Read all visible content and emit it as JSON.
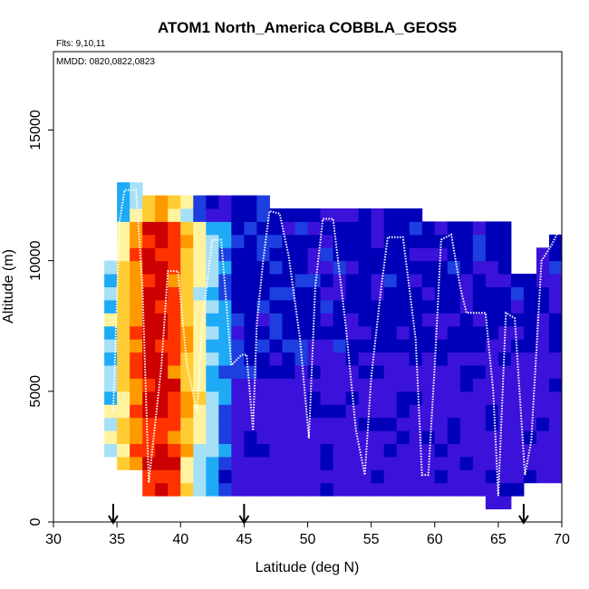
{
  "chart_data": {
    "type": "heatmap",
    "title": "ATOM1 North_America COBBLA_GEOS5",
    "annotations": {
      "flights": "Flts: 9,10,11",
      "dates": "MMDD: 0820,0822,0823"
    },
    "xlabel": "Latitude (deg N)",
    "ylabel": "Altitude (m)",
    "xlim": [
      30,
      70
    ],
    "ylim": [
      0,
      18000
    ],
    "x_ticks": [
      30,
      35,
      40,
      45,
      50,
      55,
      60,
      65,
      70
    ],
    "y_ticks": [
      0,
      5000,
      10000,
      15000
    ],
    "grid": false,
    "legend": "none",
    "arrow_markers_lat": [
      34.7,
      45.0,
      67.0
    ],
    "flight_track": {
      "color": "#ffffff",
      "points": [
        [
          34.7,
          4200
        ],
        [
          35.2,
          11500
        ],
        [
          35.6,
          12700
        ],
        [
          36.5,
          12700
        ],
        [
          37.0,
          9000
        ],
        [
          37.5,
          1500
        ],
        [
          38.5,
          6000
        ],
        [
          39.0,
          9600
        ],
        [
          39.8,
          9600
        ],
        [
          40.5,
          6000
        ],
        [
          41.3,
          4200
        ],
        [
          41.7,
          7500
        ],
        [
          42.5,
          10800
        ],
        [
          43.2,
          10800
        ],
        [
          44.0,
          6000
        ],
        [
          44.8,
          6400
        ],
        [
          45.2,
          6400
        ],
        [
          45.7,
          3500
        ],
        [
          46.0,
          7600
        ],
        [
          46.5,
          10000
        ],
        [
          47.0,
          11900
        ],
        [
          47.8,
          11800
        ],
        [
          48.5,
          10200
        ],
        [
          49.4,
          7000
        ],
        [
          50.1,
          3200
        ],
        [
          50.6,
          9000
        ],
        [
          51.2,
          11600
        ],
        [
          52.0,
          11600
        ],
        [
          53.0,
          7500
        ],
        [
          53.8,
          3500
        ],
        [
          54.5,
          1800
        ],
        [
          55.0,
          5500
        ],
        [
          55.8,
          9000
        ],
        [
          56.3,
          10900
        ],
        [
          57.5,
          10900
        ],
        [
          58.5,
          7000
        ],
        [
          59.0,
          1800
        ],
        [
          59.5,
          1800
        ],
        [
          60.0,
          6000
        ],
        [
          60.5,
          10800
        ],
        [
          61.3,
          11000
        ],
        [
          62.0,
          9000
        ],
        [
          62.5,
          8000
        ],
        [
          64.0,
          8000
        ],
        [
          64.6,
          5000
        ],
        [
          65.0,
          1000
        ],
        [
          65.6,
          8000
        ],
        [
          66.3,
          7800
        ],
        [
          67.1,
          1800
        ],
        [
          67.6,
          3100
        ],
        [
          68.4,
          10000
        ],
        [
          69.2,
          10600
        ],
        [
          69.6,
          11000
        ],
        [
          70.0,
          11100
        ]
      ]
    }
  }
}
